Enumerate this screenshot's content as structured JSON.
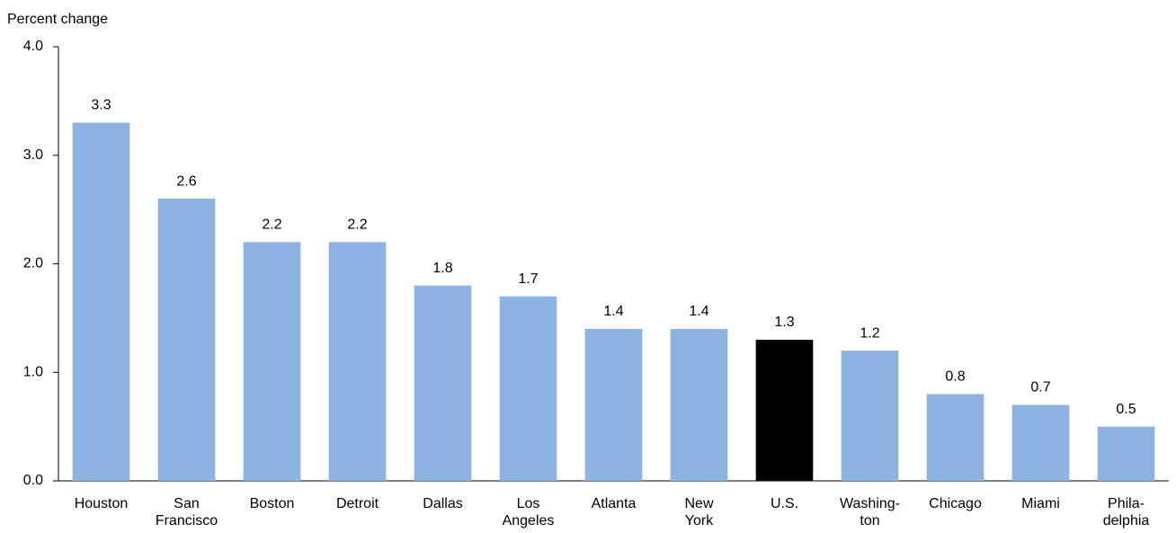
{
  "chart_data": {
    "type": "bar",
    "y_label": "Percent change",
    "categories": [
      "Houston",
      "San\nFrancisco",
      "Boston",
      "Detroit",
      "Dallas",
      "Los\nAngeles",
      "Atlanta",
      "New\nYork",
      "U.S.",
      "Washing-\nton",
      "Chicago",
      "Miami",
      "Phila-\ndelphia"
    ],
    "values": [
      3.3,
      2.6,
      2.2,
      2.2,
      1.8,
      1.7,
      1.4,
      1.4,
      1.3,
      1.2,
      0.8,
      0.7,
      0.5
    ],
    "colors": [
      "#8db3e2",
      "#8db3e2",
      "#8db3e2",
      "#8db3e2",
      "#8db3e2",
      "#8db3e2",
      "#8db3e2",
      "#8db3e2",
      "#000000",
      "#8db3e2",
      "#8db3e2",
      "#8db3e2",
      "#8db3e2"
    ],
    "ylim": [
      0,
      4
    ],
    "yticks": [
      {
        "value": 0,
        "label": "0.0"
      },
      {
        "value": 1,
        "label": "1.0"
      },
      {
        "value": 2,
        "label": "2.0"
      },
      {
        "value": 3,
        "label": "3.0"
      },
      {
        "value": 4,
        "label": "4.0"
      }
    ],
    "grid": false
  }
}
